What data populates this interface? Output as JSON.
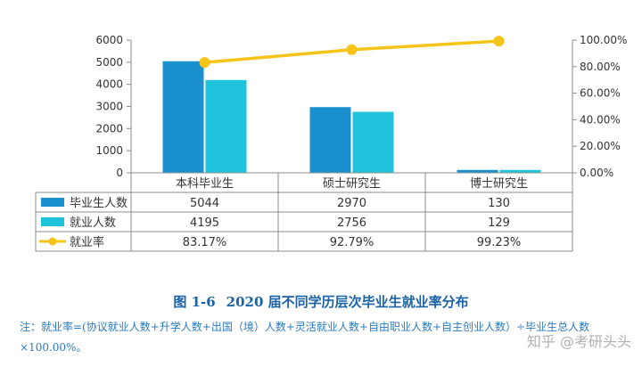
{
  "chart_data": {
    "type": "bar",
    "categories": [
      "本科毕业生",
      "硕士研究生",
      "博士研究生"
    ],
    "series": [
      {
        "name": "毕业生人数",
        "type": "bar",
        "axis": "left",
        "values": [
          5044,
          2970,
          130
        ],
        "color": "#1a90cf"
      },
      {
        "name": "就业人数",
        "type": "bar",
        "axis": "left",
        "values": [
          4195,
          2756,
          129
        ],
        "color": "#1fc4dc"
      },
      {
        "name": "就业率",
        "type": "line",
        "axis": "right",
        "values": [
          83.17,
          92.79,
          99.23
        ],
        "color": "#f6c418"
      }
    ],
    "table_rows": [
      {
        "label": "毕业生人数",
        "cells": [
          "5044",
          "2970",
          "130"
        ]
      },
      {
        "label": "就业人数",
        "cells": [
          "4195",
          "2756",
          "129"
        ]
      },
      {
        "label": "就业率",
        "cells": [
          "83.17%",
          "92.79%",
          "99.23%"
        ]
      }
    ],
    "ylim_left": [
      0,
      6000
    ],
    "yticks_left": [
      "0",
      "1000",
      "2000",
      "3000",
      "4000",
      "5000",
      "6000"
    ],
    "ylim_right": [
      0,
      100
    ],
    "yticks_right": [
      "0.00%",
      "20.00%",
      "40.00%",
      "60.00%",
      "80.00%",
      "100.00%"
    ],
    "grid": false,
    "legend": "table-left"
  },
  "caption": {
    "number": "图 1-6",
    "title": "2020 届不同学历层次毕业生就业率分布"
  },
  "note": "注：就业率=(协议就业人数+升学人数+出国（境）人数+灵活就业人数+自由职业人数+自主创业人数）÷毕业生总人数×100.00%。",
  "watermark": "知乎 @考研头头"
}
